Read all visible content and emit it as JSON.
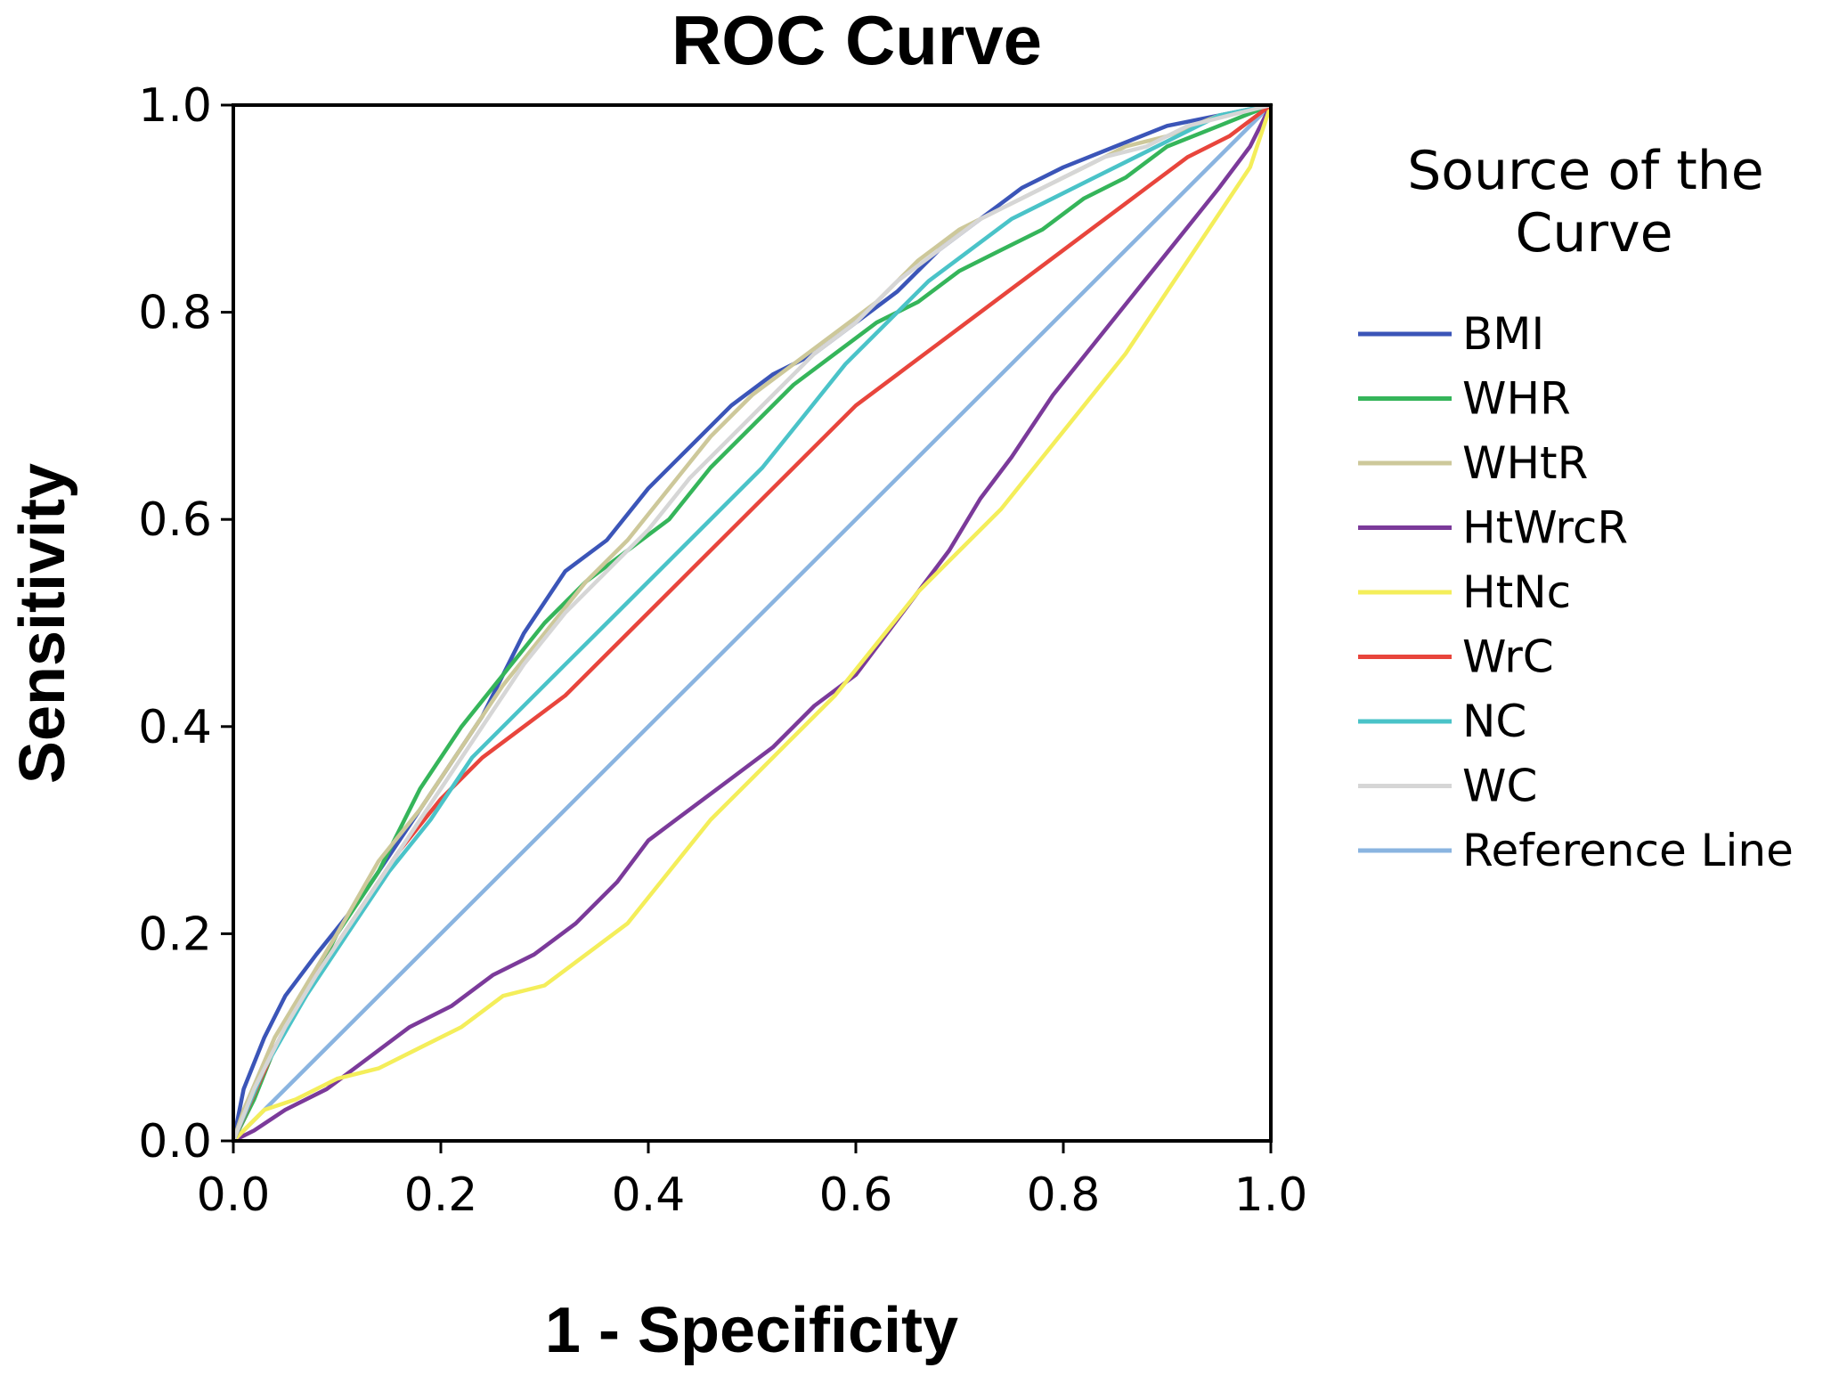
{
  "chart_data": {
    "type": "line",
    "title": "ROC Curve",
    "xlabel": "1 - Specificity",
    "ylabel": "Sensitivity",
    "xlim": [
      0.0,
      1.0
    ],
    "ylim": [
      0.0,
      1.0
    ],
    "xticks": [
      "0.0",
      "0.2",
      "0.4",
      "0.6",
      "0.8",
      "1.0"
    ],
    "yticks": [
      "0.0",
      "0.2",
      "0.4",
      "0.6",
      "0.8",
      "1.0"
    ],
    "grid": false,
    "legend": {
      "title_lines": [
        "Source of the",
        "Curve"
      ],
      "placement": "right"
    },
    "series": [
      {
        "name": "BMI",
        "color": "#3b55b8",
        "points": [
          [
            0,
            0
          ],
          [
            0.01,
            0.05
          ],
          [
            0.03,
            0.1
          ],
          [
            0.05,
            0.14
          ],
          [
            0.08,
            0.18
          ],
          [
            0.12,
            0.23
          ],
          [
            0.16,
            0.29
          ],
          [
            0.2,
            0.35
          ],
          [
            0.24,
            0.41
          ],
          [
            0.28,
            0.49
          ],
          [
            0.32,
            0.55
          ],
          [
            0.36,
            0.58
          ],
          [
            0.4,
            0.63
          ],
          [
            0.44,
            0.67
          ],
          [
            0.48,
            0.71
          ],
          [
            0.52,
            0.74
          ],
          [
            0.56,
            0.76
          ],
          [
            0.6,
            0.79
          ],
          [
            0.64,
            0.82
          ],
          [
            0.68,
            0.86
          ],
          [
            0.72,
            0.89
          ],
          [
            0.76,
            0.92
          ],
          [
            0.8,
            0.94
          ],
          [
            0.85,
            0.96
          ],
          [
            0.9,
            0.98
          ],
          [
            0.95,
            0.99
          ],
          [
            1.0,
            1.0
          ]
        ]
      },
      {
        "name": "WHR",
        "color": "#35b55a",
        "points": [
          [
            0,
            0
          ],
          [
            0.02,
            0.04
          ],
          [
            0.04,
            0.09
          ],
          [
            0.07,
            0.14
          ],
          [
            0.1,
            0.2
          ],
          [
            0.14,
            0.26
          ],
          [
            0.18,
            0.34
          ],
          [
            0.22,
            0.4
          ],
          [
            0.26,
            0.45
          ],
          [
            0.3,
            0.5
          ],
          [
            0.34,
            0.54
          ],
          [
            0.38,
            0.57
          ],
          [
            0.42,
            0.6
          ],
          [
            0.46,
            0.65
          ],
          [
            0.5,
            0.69
          ],
          [
            0.54,
            0.73
          ],
          [
            0.58,
            0.76
          ],
          [
            0.62,
            0.79
          ],
          [
            0.66,
            0.81
          ],
          [
            0.7,
            0.84
          ],
          [
            0.74,
            0.86
          ],
          [
            0.78,
            0.88
          ],
          [
            0.82,
            0.91
          ],
          [
            0.86,
            0.93
          ],
          [
            0.9,
            0.96
          ],
          [
            0.95,
            0.98
          ],
          [
            1.0,
            1.0
          ]
        ]
      },
      {
        "name": "WHtR",
        "color": "#cdc89a",
        "points": [
          [
            0,
            0
          ],
          [
            0.01,
            0.03
          ],
          [
            0.04,
            0.1
          ],
          [
            0.07,
            0.15
          ],
          [
            0.1,
            0.2
          ],
          [
            0.14,
            0.27
          ],
          [
            0.18,
            0.32
          ],
          [
            0.22,
            0.38
          ],
          [
            0.26,
            0.44
          ],
          [
            0.3,
            0.49
          ],
          [
            0.34,
            0.54
          ],
          [
            0.38,
            0.58
          ],
          [
            0.42,
            0.63
          ],
          [
            0.46,
            0.68
          ],
          [
            0.5,
            0.72
          ],
          [
            0.54,
            0.75
          ],
          [
            0.58,
            0.78
          ],
          [
            0.62,
            0.81
          ],
          [
            0.66,
            0.85
          ],
          [
            0.7,
            0.88
          ],
          [
            0.74,
            0.9
          ],
          [
            0.78,
            0.92
          ],
          [
            0.82,
            0.94
          ],
          [
            0.86,
            0.96
          ],
          [
            0.9,
            0.97
          ],
          [
            0.95,
            0.99
          ],
          [
            1.0,
            1.0
          ]
        ]
      },
      {
        "name": "HtWrcR",
        "color": "#7b3a9a",
        "points": [
          [
            0,
            0
          ],
          [
            0.02,
            0.01
          ],
          [
            0.05,
            0.03
          ],
          [
            0.09,
            0.05
          ],
          [
            0.13,
            0.08
          ],
          [
            0.17,
            0.11
          ],
          [
            0.21,
            0.13
          ],
          [
            0.25,
            0.16
          ],
          [
            0.29,
            0.18
          ],
          [
            0.33,
            0.21
          ],
          [
            0.37,
            0.25
          ],
          [
            0.4,
            0.29
          ],
          [
            0.44,
            0.32
          ],
          [
            0.48,
            0.35
          ],
          [
            0.52,
            0.38
          ],
          [
            0.56,
            0.42
          ],
          [
            0.6,
            0.45
          ],
          [
            0.63,
            0.49
          ],
          [
            0.66,
            0.53
          ],
          [
            0.69,
            0.57
          ],
          [
            0.72,
            0.62
          ],
          [
            0.75,
            0.66
          ],
          [
            0.79,
            0.72
          ],
          [
            0.83,
            0.77
          ],
          [
            0.87,
            0.82
          ],
          [
            0.91,
            0.87
          ],
          [
            0.95,
            0.92
          ],
          [
            0.98,
            0.96
          ],
          [
            1.0,
            1.0
          ]
        ]
      },
      {
        "name": "HtNc",
        "color": "#f4ee5a",
        "points": [
          [
            0,
            0
          ],
          [
            0.03,
            0.03
          ],
          [
            0.06,
            0.04
          ],
          [
            0.1,
            0.06
          ],
          [
            0.14,
            0.07
          ],
          [
            0.18,
            0.09
          ],
          [
            0.22,
            0.11
          ],
          [
            0.26,
            0.14
          ],
          [
            0.3,
            0.15
          ],
          [
            0.34,
            0.18
          ],
          [
            0.38,
            0.21
          ],
          [
            0.42,
            0.26
          ],
          [
            0.46,
            0.31
          ],
          [
            0.5,
            0.35
          ],
          [
            0.54,
            0.39
          ],
          [
            0.58,
            0.43
          ],
          [
            0.62,
            0.48
          ],
          [
            0.66,
            0.53
          ],
          [
            0.7,
            0.57
          ],
          [
            0.74,
            0.61
          ],
          [
            0.78,
            0.66
          ],
          [
            0.82,
            0.71
          ],
          [
            0.86,
            0.76
          ],
          [
            0.9,
            0.82
          ],
          [
            0.94,
            0.88
          ],
          [
            0.98,
            0.94
          ],
          [
            1.0,
            1.0
          ]
        ]
      },
      {
        "name": "WrC",
        "color": "#e8453c",
        "points": [
          [
            0,
            0
          ],
          [
            0.04,
            0.09
          ],
          [
            0.08,
            0.16
          ],
          [
            0.12,
            0.22
          ],
          [
            0.16,
            0.28
          ],
          [
            0.2,
            0.33
          ],
          [
            0.24,
            0.37
          ],
          [
            0.28,
            0.4
          ],
          [
            0.32,
            0.43
          ],
          [
            0.36,
            0.47
          ],
          [
            0.4,
            0.51
          ],
          [
            0.44,
            0.55
          ],
          [
            0.48,
            0.59
          ],
          [
            0.52,
            0.63
          ],
          [
            0.56,
            0.67
          ],
          [
            0.6,
            0.71
          ],
          [
            0.64,
            0.74
          ],
          [
            0.68,
            0.77
          ],
          [
            0.72,
            0.8
          ],
          [
            0.76,
            0.83
          ],
          [
            0.8,
            0.86
          ],
          [
            0.84,
            0.89
          ],
          [
            0.88,
            0.92
          ],
          [
            0.92,
            0.95
          ],
          [
            0.96,
            0.97
          ],
          [
            1.0,
            1.0
          ]
        ]
      },
      {
        "name": "NC",
        "color": "#4ac3c8",
        "points": [
          [
            0,
            0
          ],
          [
            0.03,
            0.07
          ],
          [
            0.07,
            0.14
          ],
          [
            0.11,
            0.2
          ],
          [
            0.15,
            0.26
          ],
          [
            0.19,
            0.31
          ],
          [
            0.23,
            0.37
          ],
          [
            0.27,
            0.41
          ],
          [
            0.31,
            0.45
          ],
          [
            0.35,
            0.49
          ],
          [
            0.39,
            0.53
          ],
          [
            0.43,
            0.57
          ],
          [
            0.47,
            0.61
          ],
          [
            0.51,
            0.65
          ],
          [
            0.55,
            0.7
          ],
          [
            0.59,
            0.75
          ],
          [
            0.63,
            0.79
          ],
          [
            0.67,
            0.83
          ],
          [
            0.71,
            0.86
          ],
          [
            0.75,
            0.89
          ],
          [
            0.79,
            0.91
          ],
          [
            0.83,
            0.93
          ],
          [
            0.87,
            0.95
          ],
          [
            0.91,
            0.97
          ],
          [
            0.95,
            0.99
          ],
          [
            1.0,
            1.0
          ]
        ]
      },
      {
        "name": "WC",
        "color": "#d6d6d6",
        "points": [
          [
            0,
            0
          ],
          [
            0.02,
            0.05
          ],
          [
            0.05,
            0.11
          ],
          [
            0.08,
            0.16
          ],
          [
            0.12,
            0.22
          ],
          [
            0.16,
            0.28
          ],
          [
            0.2,
            0.34
          ],
          [
            0.24,
            0.4
          ],
          [
            0.28,
            0.46
          ],
          [
            0.32,
            0.51
          ],
          [
            0.36,
            0.55
          ],
          [
            0.4,
            0.59
          ],
          [
            0.44,
            0.64
          ],
          [
            0.48,
            0.68
          ],
          [
            0.52,
            0.72
          ],
          [
            0.56,
            0.76
          ],
          [
            0.6,
            0.79
          ],
          [
            0.64,
            0.83
          ],
          [
            0.68,
            0.86
          ],
          [
            0.72,
            0.89
          ],
          [
            0.76,
            0.91
          ],
          [
            0.8,
            0.93
          ],
          [
            0.84,
            0.95
          ],
          [
            0.88,
            0.96
          ],
          [
            0.92,
            0.98
          ],
          [
            0.96,
            0.99
          ],
          [
            1.0,
            1.0
          ]
        ]
      },
      {
        "name": "Reference Line",
        "color": "#8ab4e0",
        "points": [
          [
            0,
            0
          ],
          [
            1.0,
            1.0
          ]
        ]
      }
    ]
  }
}
